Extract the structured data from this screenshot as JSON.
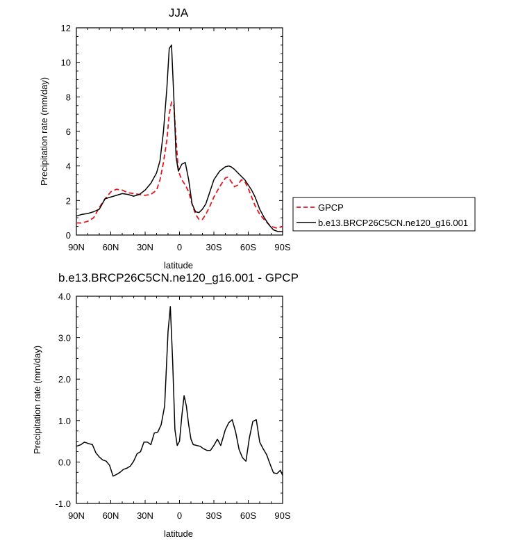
{
  "chart_data": [
    {
      "type": "line",
      "title": "JJA",
      "xlabel": "latitude",
      "ylabel": "Precipitation rate (mm/day)",
      "xlim": [
        -90,
        90
      ],
      "ylim": [
        0,
        12
      ],
      "x_ticks": [
        -90,
        -60,
        -30,
        0,
        30,
        60,
        90
      ],
      "x_tick_labels": [
        "90N",
        "60N",
        "30N",
        "0",
        "30S",
        "60S",
        "90S"
      ],
      "y_ticks": [
        0,
        2,
        4,
        6,
        8,
        10,
        12
      ],
      "y_tick_labels": [
        "0",
        "2",
        "4",
        "6",
        "8",
        "10",
        "12"
      ],
      "grid": false,
      "legend_position": "outside-right",
      "series": [
        {
          "name": "GPCP",
          "color": "#e8141e",
          "dash": "dashed",
          "x": [
            -90,
            -85,
            -80,
            -75,
            -70,
            -65,
            -60,
            -55,
            -50,
            -45,
            -40,
            -35,
            -30,
            -25,
            -20,
            -17,
            -14,
            -11,
            -9,
            -7,
            -5,
            -3,
            -1,
            2,
            5,
            8,
            11,
            14,
            17,
            20,
            23,
            26,
            30,
            35,
            40,
            42,
            44,
            46,
            48,
            51,
            54,
            57,
            60,
            63,
            66,
            70,
            75,
            80,
            85,
            90
          ],
          "values": [
            0.7,
            0.7,
            0.8,
            1.0,
            1.6,
            2.1,
            2.5,
            2.65,
            2.6,
            2.45,
            2.4,
            2.35,
            2.3,
            2.35,
            2.6,
            3.2,
            4.2,
            5.5,
            7.0,
            7.7,
            7.5,
            5.5,
            3.7,
            3.2,
            2.9,
            2.5,
            1.8,
            1.2,
            0.9,
            0.9,
            1.2,
            1.6,
            2.2,
            2.8,
            3.3,
            3.35,
            3.2,
            3.0,
            2.8,
            2.9,
            3.2,
            3.1,
            2.7,
            2.2,
            1.7,
            1.2,
            0.8,
            0.5,
            0.4,
            0.5
          ]
        },
        {
          "name": "b.e13.BRCP26C5CN.ne120_g16.001",
          "color": "#000000",
          "dash": "solid",
          "x": [
            -90,
            -85,
            -80,
            -75,
            -70,
            -65,
            -60,
            -55,
            -50,
            -45,
            -40,
            -35,
            -30,
            -25,
            -20,
            -17,
            -14,
            -11,
            -9,
            -7,
            -5,
            -3,
            -1,
            2,
            5,
            8,
            11,
            14,
            17,
            20,
            23,
            26,
            30,
            35,
            40,
            43,
            45,
            48,
            51,
            54,
            57,
            60,
            63,
            66,
            70,
            74,
            78,
            82,
            86,
            90
          ],
          "values": [
            1.1,
            1.2,
            1.25,
            1.35,
            1.5,
            2.1,
            2.2,
            2.3,
            2.4,
            2.35,
            2.25,
            2.35,
            2.6,
            3.0,
            3.6,
            4.3,
            6.0,
            8.5,
            10.8,
            11.0,
            8.0,
            4.5,
            3.7,
            4.1,
            4.2,
            3.2,
            1.8,
            1.35,
            1.3,
            1.5,
            1.8,
            2.4,
            3.2,
            3.7,
            3.95,
            4.0,
            3.95,
            3.8,
            3.6,
            3.4,
            3.2,
            2.9,
            2.6,
            2.2,
            1.5,
            1.0,
            0.6,
            0.3,
            0.2,
            0.2
          ]
        }
      ]
    },
    {
      "type": "line",
      "title": "b.e13.BRCP26C5CN.ne120_g16.001 - GPCP",
      "xlabel": "latitude",
      "ylabel": "Precipitation rate (mm/day)",
      "xlim": [
        -90,
        90
      ],
      "ylim": [
        -1,
        4
      ],
      "x_ticks": [
        -90,
        -60,
        -30,
        0,
        30,
        60,
        90
      ],
      "x_tick_labels": [
        "90N",
        "60N",
        "30N",
        "0",
        "30S",
        "60S",
        "90S"
      ],
      "y_ticks": [
        -1,
        0,
        1,
        2,
        3,
        4
      ],
      "y_tick_labels": [
        "-1.0",
        "0.0",
        "1.0",
        "2.0",
        "3.0",
        "4.0"
      ],
      "grid": false,
      "series": [
        {
          "color": "#000000",
          "dash": "solid",
          "x": [
            -90,
            -86,
            -83,
            -80,
            -76,
            -73,
            -70,
            -67,
            -64,
            -61,
            -58,
            -55,
            -52,
            -49,
            -46,
            -43,
            -40,
            -37,
            -34,
            -31,
            -28,
            -25,
            -22,
            -19,
            -16,
            -13,
            -10,
            -8,
            -6,
            -4,
            -2,
            0,
            2,
            4,
            6,
            8,
            10,
            12,
            15,
            18,
            21,
            24,
            27,
            30,
            33,
            36,
            40,
            43,
            46,
            49,
            52,
            55,
            58,
            61,
            64,
            67,
            70,
            73,
            76,
            79,
            82,
            85,
            88,
            90
          ],
          "values": [
            0.38,
            0.42,
            0.48,
            0.45,
            0.42,
            0.22,
            0.12,
            0.05,
            0.02,
            -0.08,
            -0.34,
            -0.3,
            -0.25,
            -0.18,
            -0.15,
            -0.1,
            0.02,
            0.2,
            0.25,
            0.48,
            0.48,
            0.42,
            0.7,
            0.72,
            0.9,
            1.35,
            3.15,
            3.75,
            2.45,
            0.78,
            0.4,
            0.5,
            1.1,
            1.6,
            1.35,
            0.9,
            0.55,
            0.42,
            0.4,
            0.38,
            0.32,
            0.28,
            0.28,
            0.4,
            0.55,
            0.4,
            0.78,
            0.95,
            1.02,
            0.72,
            0.3,
            0.1,
            0.02,
            0.58,
            0.98,
            1.02,
            0.48,
            0.32,
            0.18,
            -0.05,
            -0.26,
            -0.28,
            -0.2,
            -0.32
          ]
        }
      ]
    }
  ]
}
